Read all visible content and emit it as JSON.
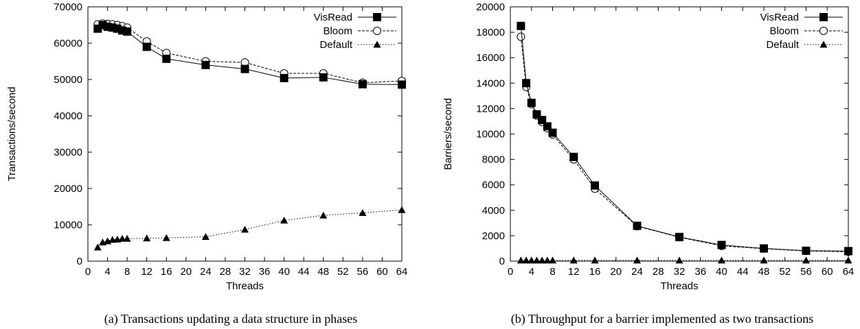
{
  "chart_data": [
    {
      "type": "line",
      "caption": "(a)  Transactions updating a data structure in phases",
      "xlabel": "Threads",
      "ylabel": "Transactions/second",
      "xlim": [
        0,
        64
      ],
      "ylim": [
        0,
        70000
      ],
      "xticks": [
        0,
        4,
        8,
        12,
        16,
        20,
        24,
        28,
        32,
        36,
        40,
        44,
        48,
        52,
        56,
        60,
        64
      ],
      "yticks": [
        0,
        10000,
        20000,
        30000,
        40000,
        50000,
        60000,
        70000
      ],
      "legend_position": "top-right",
      "series": [
        {
          "name": "VisRead",
          "marker": "filled-square",
          "line": "solid",
          "x": [
            2,
            3,
            4,
            5,
            6,
            7,
            8,
            12,
            16,
            24,
            32,
            40,
            48,
            56,
            64
          ],
          "y": [
            64000,
            65000,
            64500,
            64300,
            64000,
            63500,
            63200,
            59000,
            55700,
            54000,
            52900,
            50400,
            50600,
            48700,
            48600
          ]
        },
        {
          "name": "Bloom",
          "marker": "open-circle",
          "line": "dashed",
          "x": [
            2,
            3,
            4,
            5,
            6,
            7,
            8,
            12,
            16,
            24,
            32,
            40,
            48,
            56,
            64
          ],
          "y": [
            65200,
            65400,
            65300,
            65200,
            65000,
            64700,
            64300,
            60500,
            57300,
            55000,
            54700,
            51700,
            51700,
            49100,
            49600
          ]
        },
        {
          "name": "Default",
          "marker": "filled-triangle",
          "line": "dotted",
          "x": [
            2,
            3,
            4,
            5,
            6,
            7,
            8,
            12,
            16,
            24,
            32,
            40,
            48,
            56,
            64
          ],
          "y": [
            3800,
            5200,
            5500,
            5900,
            6000,
            6200,
            6200,
            6300,
            6400,
            6700,
            8700,
            11200,
            12600,
            13300,
            14100
          ]
        }
      ]
    },
    {
      "type": "line",
      "caption": "(b)  Throughput for a barrier implemented as two transactions",
      "xlabel": "Threads",
      "ylabel": "Barriers/second",
      "xlim": [
        0,
        64
      ],
      "ylim": [
        0,
        20000
      ],
      "xticks": [
        0,
        4,
        8,
        12,
        16,
        20,
        24,
        28,
        32,
        36,
        40,
        44,
        48,
        52,
        56,
        60,
        64
      ],
      "yticks": [
        0,
        2000,
        4000,
        6000,
        8000,
        10000,
        12000,
        14000,
        16000,
        18000,
        20000
      ],
      "legend_position": "top-right",
      "series": [
        {
          "name": "VisRead",
          "marker": "filled-square",
          "line": "solid",
          "x": [
            2,
            3,
            4,
            5,
            6,
            7,
            8,
            12,
            16,
            24,
            32,
            40,
            48,
            56,
            64
          ],
          "y": [
            18500,
            14000,
            12450,
            11550,
            11100,
            10600,
            10100,
            8200,
            5950,
            2780,
            1900,
            1270,
            1000,
            820,
            790
          ]
        },
        {
          "name": "Bloom",
          "marker": "open-circle",
          "line": "dashed",
          "x": [
            2,
            3,
            4,
            5,
            6,
            7,
            8,
            12,
            16,
            24,
            32,
            40,
            48,
            56,
            64
          ],
          "y": [
            17650,
            13700,
            12350,
            11450,
            10950,
            10450,
            9950,
            8000,
            5700,
            2750,
            1880,
            1200,
            980,
            800,
            740
          ]
        },
        {
          "name": "Default",
          "marker": "filled-triangle",
          "line": "dotted",
          "x": [
            2,
            3,
            4,
            5,
            6,
            7,
            8,
            12,
            16,
            24,
            32,
            40,
            48,
            56,
            64
          ],
          "y": [
            60,
            60,
            60,
            60,
            60,
            60,
            60,
            60,
            60,
            60,
            60,
            60,
            60,
            60,
            60
          ]
        }
      ]
    }
  ]
}
